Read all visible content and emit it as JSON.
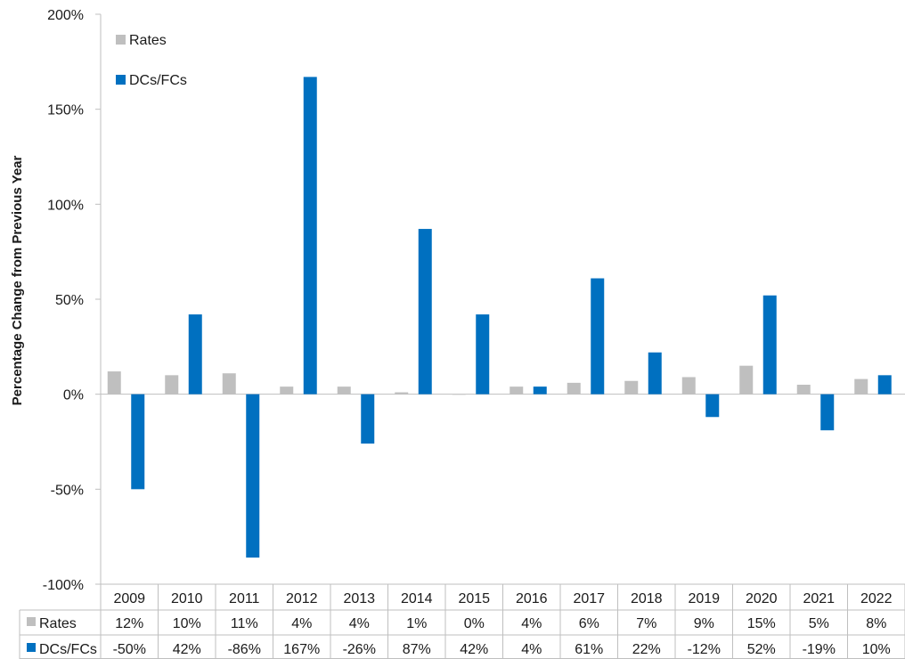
{
  "chart_data": {
    "type": "bar",
    "title": "",
    "xlabel": "",
    "ylabel": "Percentage Change from Previous Year",
    "ylim": [
      -100,
      200
    ],
    "yticks": [
      -100,
      -50,
      0,
      50,
      100,
      150,
      200
    ],
    "ytick_labels": [
      "-100%",
      "-50%",
      "0%",
      "50%",
      "100%",
      "150%",
      "200%"
    ],
    "grid": false,
    "legend_position": "top-left",
    "categories": [
      "2009",
      "2010",
      "2011",
      "2012",
      "2013",
      "2014",
      "2015",
      "2016",
      "2017",
      "2018",
      "2019",
      "2020",
      "2021",
      "2022"
    ],
    "series": [
      {
        "name": "Rates",
        "color": "#bfbfbf",
        "values": [
          12,
          10,
          11,
          4,
          4,
          1,
          0,
          4,
          6,
          7,
          9,
          15,
          5,
          8
        ],
        "table_labels": [
          "12%",
          "10%",
          "11%",
          "4%",
          "4%",
          "1%",
          "0%",
          "4%",
          "6%",
          "7%",
          "9%",
          "15%",
          "5%",
          "8%"
        ]
      },
      {
        "name": "DCs/FCs",
        "color": "#0070c0",
        "values": [
          -50,
          42,
          -86,
          167,
          -26,
          87,
          42,
          4,
          61,
          22,
          -12,
          52,
          -19,
          10
        ],
        "table_labels": [
          "-50%",
          "42%",
          "-86%",
          "167%",
          "-26%",
          "87%",
          "42%",
          "4%",
          "61%",
          "22%",
          "-12%",
          "52%",
          "-19%",
          "10%"
        ]
      }
    ]
  }
}
